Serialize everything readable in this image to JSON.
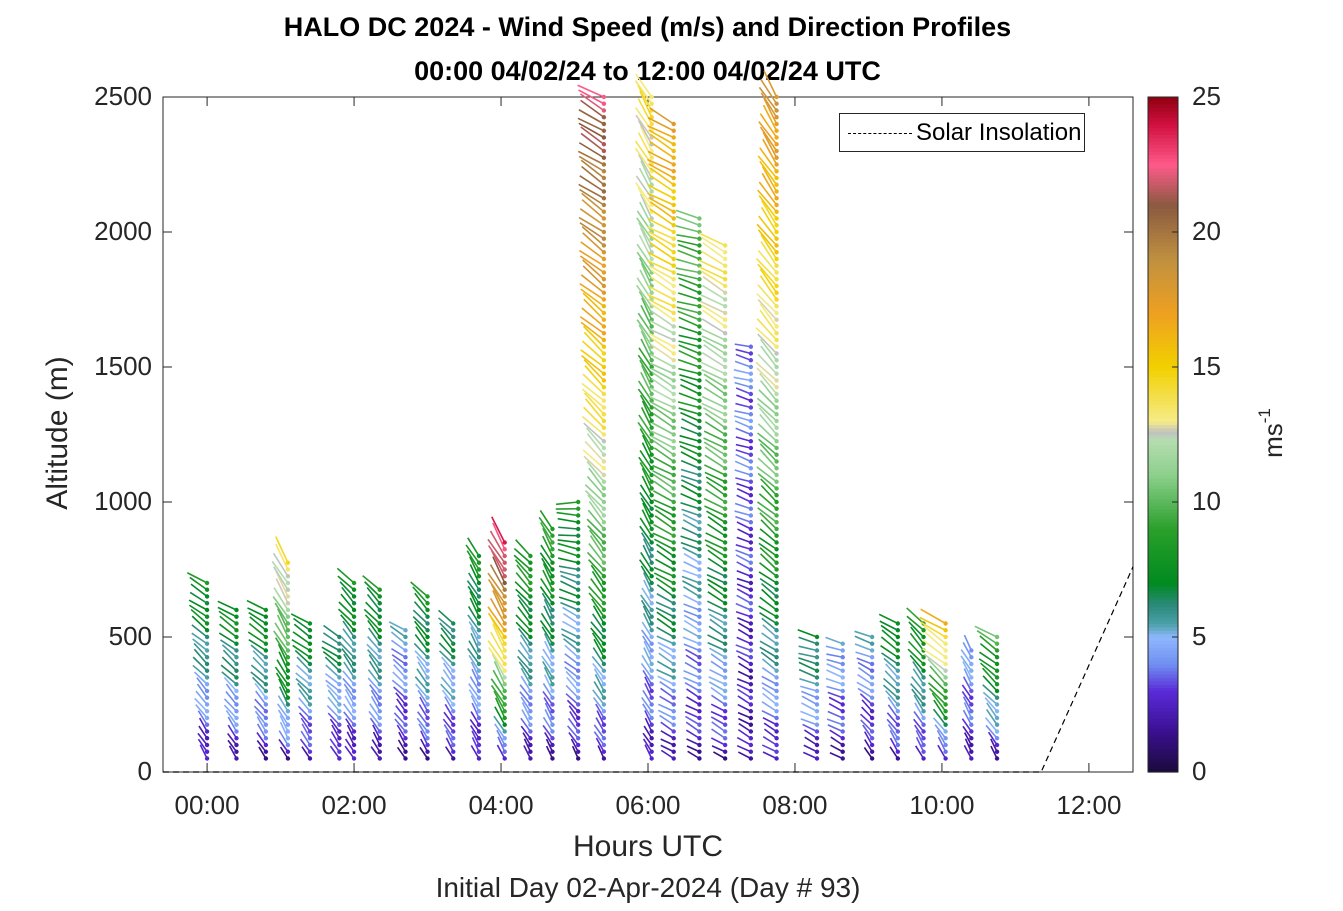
{
  "title": {
    "line1": "HALO DC 2024 - Wind Speed (m/s) and Direction Profiles",
    "line2": "00:00 04/02/24 to 12:00 04/02/24  UTC"
  },
  "chart_data": {
    "type": "scatter",
    "title": "HALO DC 2024 - Wind Speed (m/s) and Direction Profiles",
    "subtitle": "00:00 04/02/24 to 12:00 04/02/24  UTC",
    "xlabel": "Hours UTC",
    "xsublabel": "Initial Day 02-Apr-2024 (Day # 93)",
    "ylabel": "Altitude (m)",
    "xlim": [
      -0.6,
      12.6
    ],
    "ylim": [
      0,
      2500
    ],
    "x_tick_values": [
      0,
      2,
      4,
      6,
      8,
      10,
      12
    ],
    "x_tick_labels": [
      "00:00",
      "02:00",
      "04:00",
      "06:00",
      "08:00",
      "10:00",
      "12:00"
    ],
    "y_tick_values": [
      0,
      500,
      1000,
      1500,
      2000,
      2500
    ],
    "y_tick_labels": [
      "0",
      "500",
      "1000",
      "1500",
      "2000",
      "2500"
    ],
    "colorbar": {
      "label": "ms",
      "label_exponent": "-1",
      "range": [
        0,
        25
      ],
      "tick_values": [
        0,
        5,
        10,
        15,
        20,
        25
      ],
      "tick_labels": [
        "0",
        "5",
        "10",
        "15",
        "20",
        "25"
      ],
      "colormap": [
        {
          "v": 0,
          "c": "#1a0a3a"
        },
        {
          "v": 1.5,
          "c": "#3a1090"
        },
        {
          "v": 3,
          "c": "#5a2ad8"
        },
        {
          "v": 4,
          "c": "#6f8ff0"
        },
        {
          "v": 5,
          "c": "#8fb8ff"
        },
        {
          "v": 5.5,
          "c": "#4aa0a8"
        },
        {
          "v": 6.2,
          "c": "#2b8a7a"
        },
        {
          "v": 7,
          "c": "#008a20"
        },
        {
          "v": 9,
          "c": "#2aa02a"
        },
        {
          "v": 11,
          "c": "#8ccf8c"
        },
        {
          "v": 12.3,
          "c": "#b5ddb0"
        },
        {
          "v": 12.6,
          "c": "#c0c0c0"
        },
        {
          "v": 13,
          "c": "#f6ec88"
        },
        {
          "v": 15,
          "c": "#f2d000"
        },
        {
          "v": 17,
          "c": "#eea020"
        },
        {
          "v": 19,
          "c": "#c09040"
        },
        {
          "v": 21,
          "c": "#8a5a40"
        },
        {
          "v": 22.5,
          "c": "#ff5a8a"
        },
        {
          "v": 24,
          "c": "#d01040"
        },
        {
          "v": 25,
          "c": "#900010"
        }
      ]
    },
    "legend": {
      "location": "top-right",
      "entries": [
        "Solar Insolation"
      ]
    },
    "solar_insolation": {
      "style": "dashed",
      "color": "#000000",
      "x": [
        -0.6,
        11.35,
        12.6
      ],
      "y": [
        0,
        0,
        760
      ]
    },
    "wind_profiles": [
      {
        "time": 0.0,
        "top": 700,
        "ws_low": 2,
        "ws_top": 8,
        "dir_low": 330,
        "dir_top": 300
      },
      {
        "time": 0.4,
        "top": 600,
        "ws_low": 2,
        "ws_top": 8,
        "dir_low": 330,
        "dir_top": 300
      },
      {
        "time": 0.8,
        "top": 600,
        "ws_low": 2,
        "ws_top": 8,
        "dir_low": 330,
        "dir_top": 300
      },
      {
        "time": 1.1,
        "top": 780,
        "ws_low": 2,
        "ws_top": 14,
        "dir_low": 330,
        "dir_top": 330
      },
      {
        "time": 1.4,
        "top": 560,
        "ws_low": 2,
        "ws_top": 8,
        "dir_low": 330,
        "dir_top": 300
      },
      {
        "time": 1.8,
        "top": 500,
        "ws_low": 2,
        "ws_top": 7,
        "dir_low": 330,
        "dir_top": 300
      },
      {
        "time": 2.0,
        "top": 700,
        "ws_low": 2,
        "ws_top": 8,
        "dir_low": 330,
        "dir_top": 315
      },
      {
        "time": 2.35,
        "top": 690,
        "ws_low": 2,
        "ws_top": 8,
        "dir_low": 330,
        "dir_top": 315
      },
      {
        "time": 2.7,
        "top": 540,
        "ws_low": 2,
        "ws_top": 5,
        "dir_low": 330,
        "dir_top": 300
      },
      {
        "time": 3.0,
        "top": 670,
        "ws_low": 2,
        "ws_top": 8,
        "dir_low": 330,
        "dir_top": 315
      },
      {
        "time": 3.35,
        "top": 550,
        "ws_low": 2,
        "ws_top": 7,
        "dir_low": 330,
        "dir_top": 315
      },
      {
        "time": 3.7,
        "top": 800,
        "ws_low": 2,
        "ws_top": 8,
        "dir_low": 330,
        "dir_top": 330
      },
      {
        "time": 4.05,
        "top": 860,
        "ws_low": 2,
        "ws_top": 24,
        "dir_low": 330,
        "dir_top": 330
      },
      {
        "time": 4.4,
        "top": 820,
        "ws_low": 2,
        "ws_top": 9,
        "dir_low": 330,
        "dir_top": 315
      },
      {
        "time": 4.7,
        "top": 900,
        "ws_low": 2,
        "ws_top": 9,
        "dir_low": 330,
        "dir_top": 330
      },
      {
        "time": 5.05,
        "top": 1000,
        "ws_low": 2,
        "ws_top": 8,
        "dir_low": 330,
        "dir_top": 270
      },
      {
        "time": 5.4,
        "top": 2500,
        "ws_low": 2,
        "ws_top": 22,
        "dir_low": 330,
        "dir_top": 300
      },
      {
        "time": 6.05,
        "top": 2500,
        "ws_low": 2,
        "ws_top": 14,
        "dir_low": 330,
        "dir_top": 330
      },
      {
        "time": 6.35,
        "top": 2400,
        "ws_low": 2,
        "ws_top": 17,
        "dir_low": 300,
        "dir_top": 300
      },
      {
        "time": 6.7,
        "top": 2050,
        "ws_low": 2,
        "ws_top": 10,
        "dir_low": 300,
        "dir_top": 285
      },
      {
        "time": 7.05,
        "top": 1950,
        "ws_low": 2,
        "ws_top": 14,
        "dir_low": 300,
        "dir_top": 300
      },
      {
        "time": 7.4,
        "top": 1580,
        "ws_low": 2,
        "ws_top": 4,
        "dir_low": 300,
        "dir_top": 285
      },
      {
        "time": 7.75,
        "top": 2500,
        "ws_low": 2,
        "ws_top": 18,
        "dir_low": 300,
        "dir_top": 330
      },
      {
        "time": 8.3,
        "top": 500,
        "ws_low": 2,
        "ws_top": 7,
        "dir_low": 300,
        "dir_top": 285
      },
      {
        "time": 8.65,
        "top": 480,
        "ws_low": 2,
        "ws_top": 5,
        "dir_low": 300,
        "dir_top": 285
      },
      {
        "time": 9.05,
        "top": 500,
        "ws_low": 2,
        "ws_top": 5,
        "dir_low": 330,
        "dir_top": 285
      },
      {
        "time": 9.4,
        "top": 560,
        "ws_low": 2,
        "ws_top": 8,
        "dir_low": 330,
        "dir_top": 300
      },
      {
        "time": 9.75,
        "top": 560,
        "ws_low": 2,
        "ws_top": 9,
        "dir_low": 330,
        "dir_top": 315
      },
      {
        "time": 10.05,
        "top": 560,
        "ws_low": 2,
        "ws_top": 16,
        "dir_low": 330,
        "dir_top": 300
      },
      {
        "time": 10.4,
        "top": 470,
        "ws_low": 2,
        "ws_top": 5,
        "dir_low": 330,
        "dir_top": 330
      },
      {
        "time": 10.75,
        "top": 520,
        "ws_low": 2,
        "ws_top": 10,
        "dir_low": 330,
        "dir_top": 300
      }
    ]
  }
}
